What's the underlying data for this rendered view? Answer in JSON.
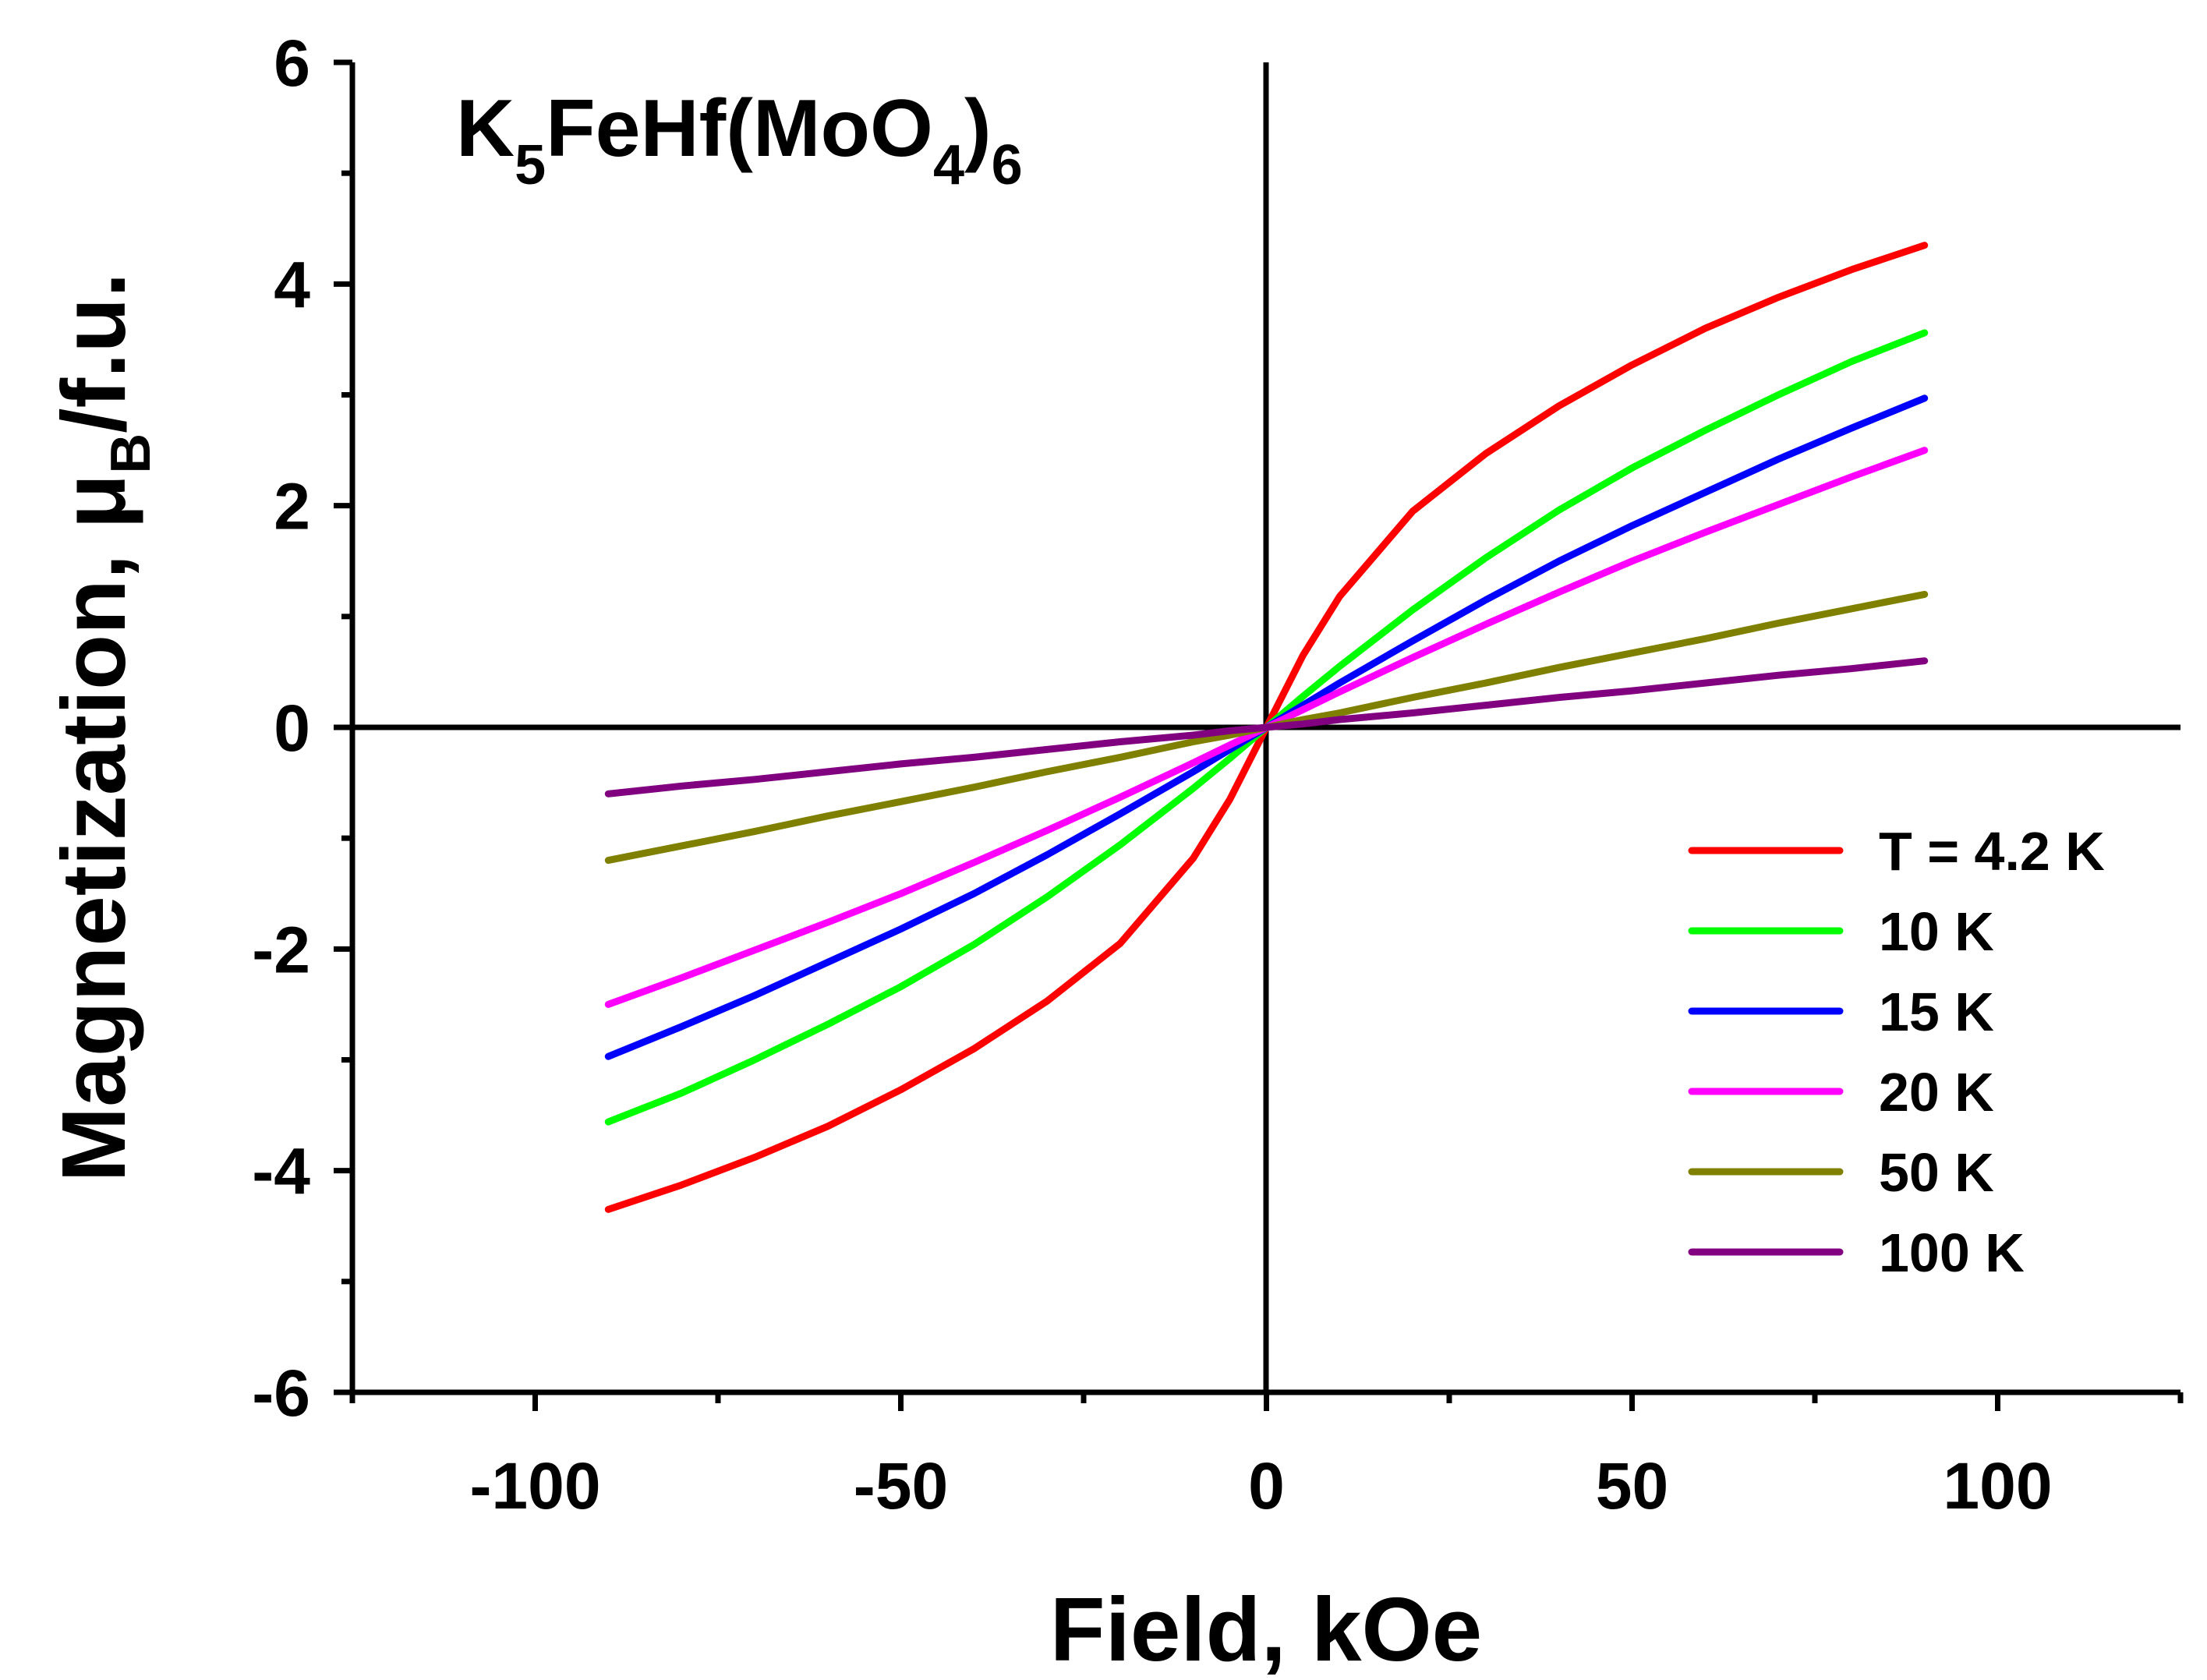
{
  "chart_data": {
    "type": "line",
    "title": "K5FeHf(MoO4)6",
    "title_parts": {
      "k": "K",
      "k_sub": "5",
      "mid": "FeHf(MoO",
      "o_sub": "4",
      "close": ")",
      "end_sub": "6"
    },
    "xlabel": "Field, kOe",
    "ylabel": "Magnetization, μB/f.u.",
    "ylabel_parts": {
      "main": "Magnetization, μ",
      "sub": "B",
      "tail": "/f.u."
    },
    "xlim": [
      -125,
      125
    ],
    "ylim": [
      -6,
      6
    ],
    "x_ticks": [
      -100,
      -50,
      0,
      50,
      100
    ],
    "y_ticks": [
      -6,
      -4,
      -2,
      0,
      2,
      4,
      6
    ],
    "x_tick_labels": [
      "-100",
      "-50",
      "0",
      "50",
      "100"
    ],
    "y_tick_labels": [
      "-6",
      "-4",
      "-2",
      "0",
      "2",
      "4",
      "6"
    ],
    "x": [
      -90,
      -80,
      -70,
      -60,
      -50,
      -40,
      -30,
      -20,
      -10,
      -5,
      0,
      5,
      10,
      20,
      30,
      40,
      50,
      60,
      70,
      80,
      90
    ],
    "series": [
      {
        "name": "T = 4.2 K",
        "color": "#ff0000",
        "values": [
          -4.35,
          -4.13,
          -3.88,
          -3.6,
          -3.27,
          -2.9,
          -2.47,
          -1.95,
          -1.18,
          -0.65,
          0,
          0.65,
          1.18,
          1.95,
          2.47,
          2.9,
          3.27,
          3.6,
          3.88,
          4.13,
          4.35
        ]
      },
      {
        "name": "10 K",
        "color": "#00ff00",
        "values": [
          -3.56,
          -3.3,
          -3.0,
          -2.68,
          -2.34,
          -1.96,
          -1.53,
          -1.06,
          -0.55,
          -0.28,
          0,
          0.28,
          0.55,
          1.06,
          1.53,
          1.96,
          2.34,
          2.68,
          3.0,
          3.3,
          3.56
        ]
      },
      {
        "name": "15 K",
        "color": "#0000ff",
        "values": [
          -2.97,
          -2.7,
          -2.42,
          -2.12,
          -1.82,
          -1.5,
          -1.15,
          -0.78,
          -0.4,
          -0.2,
          0,
          0.2,
          0.4,
          0.78,
          1.15,
          1.5,
          1.82,
          2.12,
          2.42,
          2.7,
          2.97
        ]
      },
      {
        "name": "20 K",
        "color": "#ff00ff",
        "values": [
          -2.5,
          -2.26,
          -2.01,
          -1.76,
          -1.5,
          -1.22,
          -0.93,
          -0.63,
          -0.32,
          -0.16,
          0,
          0.16,
          0.32,
          0.63,
          0.93,
          1.22,
          1.5,
          1.76,
          2.01,
          2.26,
          2.5
        ]
      },
      {
        "name": "50 K",
        "color": "#808000",
        "values": [
          -1.2,
          -1.07,
          -0.94,
          -0.8,
          -0.67,
          -0.54,
          -0.4,
          -0.27,
          -0.13,
          -0.07,
          0,
          0.07,
          0.13,
          0.27,
          0.4,
          0.54,
          0.67,
          0.8,
          0.94,
          1.07,
          1.2
        ]
      },
      {
        "name": "100 K",
        "color": "#800080",
        "values": [
          -0.6,
          -0.53,
          -0.47,
          -0.4,
          -0.33,
          -0.27,
          -0.2,
          -0.13,
          -0.07,
          -0.03,
          0,
          0.03,
          0.07,
          0.13,
          0.2,
          0.27,
          0.33,
          0.4,
          0.47,
          0.53,
          0.6
        ]
      }
    ],
    "legend_position": "right-middle",
    "grid": false
  }
}
